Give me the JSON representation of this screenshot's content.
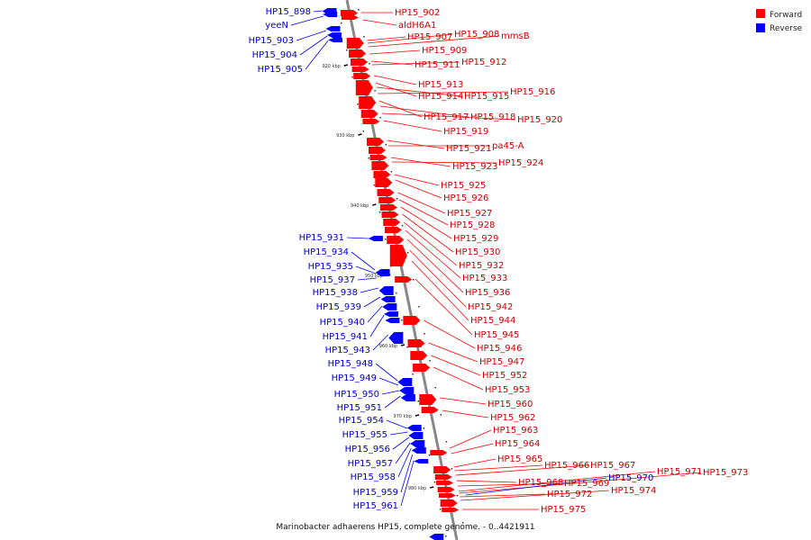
{
  "chart_data": {
    "type": "genome-map",
    "caption": "Marinobacter adhaerens HP15, complete genome. - 0..4421911",
    "legend": [
      {
        "label": "Forward",
        "color": "#ff0000"
      },
      {
        "label": "Reverse",
        "color": "#0000ff"
      }
    ],
    "ticks": [
      "920 kbp",
      "930 kbp",
      "940 kbp",
      "950 kbp",
      "960 kbp",
      "970 kbp",
      "980 kbp"
    ],
    "forward_labels": [
      "HP15_902",
      "aldH6A1",
      "HP15_907",
      "HP15_908",
      "mmsB",
      "HP15_909",
      "HP15_911",
      "HP15_912",
      "HP15_913",
      "HP15_914",
      "HP15_915",
      "HP15_916",
      "HP15_917",
      "HP15_918",
      "HP15_920",
      "HP15_919",
      "HP15_921",
      "pa45-A",
      "HP15_923",
      "HP15_924",
      "HP15_925",
      "HP15_926",
      "HP15_927",
      "HP15_928",
      "HP15_929",
      "HP15_930",
      "HP15_932",
      "HP15_933",
      "HP15_936",
      "HP15_942",
      "HP15_944",
      "HP15_945",
      "HP15_946",
      "HP15_947",
      "HP15_952",
      "HP15_953",
      "HP15_960",
      "HP15_962",
      "HP15_963",
      "HP15_964",
      "HP15_965",
      "HP15_966",
      "HP15_967",
      "HP15_968",
      "HP15_969",
      "HP15_971",
      "HP15_973",
      "HP15_972",
      "HP15_974",
      "HP15_975"
    ],
    "reverse_labels": [
      "HP15_898",
      "yeeN",
      "HP15_903",
      "HP15_904",
      "HP15_905",
      "HP15_931",
      "HP15_934",
      "HP15_935",
      "HP15_937",
      "HP15_938",
      "HP15_939",
      "HP15_940",
      "HP15_941",
      "HP15_943",
      "HP15_948",
      "HP15_949",
      "HP15_950",
      "HP15_951",
      "HP15_954",
      "HP15_955",
      "HP15_956",
      "HP15_957",
      "HP15_958",
      "HP15_959",
      "HP15_961",
      "HP15_970"
    ]
  },
  "colors": {
    "forward": "#ff0000",
    "reverse": "#0000ff",
    "axis": "#888888"
  }
}
